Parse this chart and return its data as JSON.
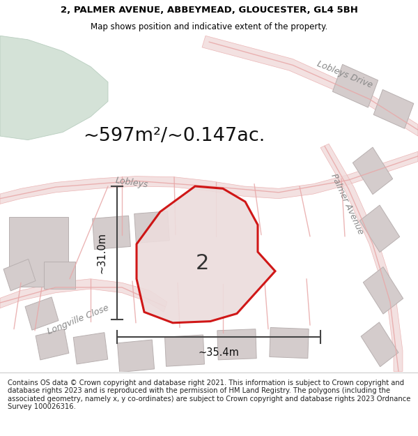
{
  "title_line1": "2, PALMER AVENUE, ABBEYMEAD, GLOUCESTER, GL4 5BH",
  "title_line2": "Map shows position and indicative extent of the property.",
  "footer_text": "Contains OS data © Crown copyright and database right 2021. This information is subject to Crown copyright and database rights 2023 and is reproduced with the permission of HM Land Registry. The polygons (including the associated geometry, namely x, y co-ordinates) are subject to Crown copyright and database rights 2023 Ordnance Survey 100026316.",
  "map_bg": "#f7f2f2",
  "area_text": "~597m²/~0.147ac.",
  "plot_label": "2",
  "dim_height": "~31.0m",
  "dim_width": "~35.4m",
  "label_lobleys_drive": "Lobleys Drive",
  "label_lobleys": "Lobleys",
  "label_palmer": "Palmer Avenue",
  "label_longville": "Longville Close",
  "title_fontsize": 9.5,
  "subtitle_fontsize": 8.5,
  "footer_fontsize": 7.2,
  "highlight_color": "#cc0000",
  "building_color": "#d4cccc",
  "road_color": "#e8a8a8",
  "green_color": "#cdddd0",
  "road_bg": "#f0dada"
}
